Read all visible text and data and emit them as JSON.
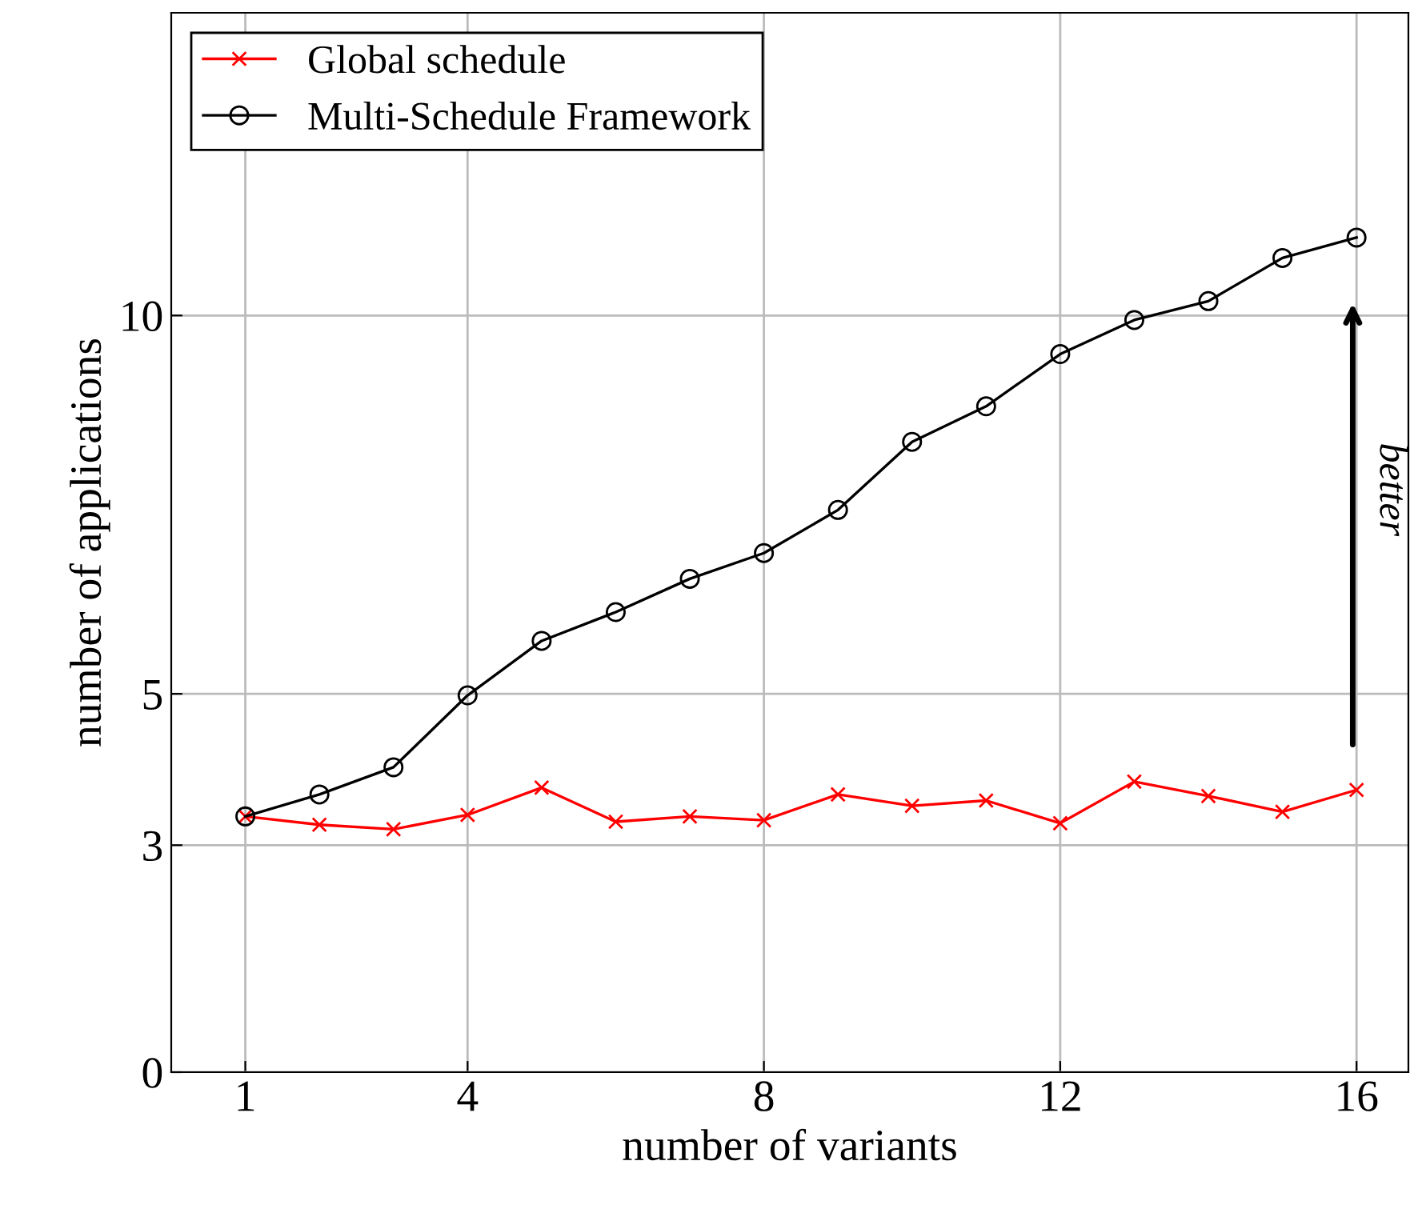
{
  "chart_data": {
    "type": "line",
    "xlabel": "number of variants",
    "ylabel": "number of applications",
    "x": [
      1,
      2,
      3,
      4,
      5,
      6,
      7,
      8,
      9,
      10,
      11,
      12,
      13,
      14,
      15,
      16
    ],
    "series": [
      {
        "name": "Global schedule",
        "color": "#ff0000",
        "marker": "cross",
        "values": [
          3.38,
          3.27,
          3.21,
          3.4,
          3.76,
          3.31,
          3.38,
          3.33,
          3.67,
          3.52,
          3.59,
          3.29,
          3.84,
          3.65,
          3.44,
          3.73
        ]
      },
      {
        "name": "Multi-Schedule Framework",
        "color": "#000000",
        "marker": "circle",
        "values": [
          3.38,
          3.67,
          4.03,
          4.98,
          5.7,
          6.08,
          6.52,
          6.86,
          7.43,
          8.33,
          8.8,
          9.49,
          9.94,
          10.19,
          10.76,
          11.03
        ]
      }
    ],
    "xlim": [
      0,
      16.7
    ],
    "xticks": [
      1,
      4,
      8,
      12,
      16
    ],
    "ylim": [
      0,
      14
    ],
    "yticks": [
      0,
      3,
      5,
      10
    ],
    "grid": true,
    "legend": "top left",
    "line_style": "solid",
    "annotations": [
      "better"
    ]
  }
}
